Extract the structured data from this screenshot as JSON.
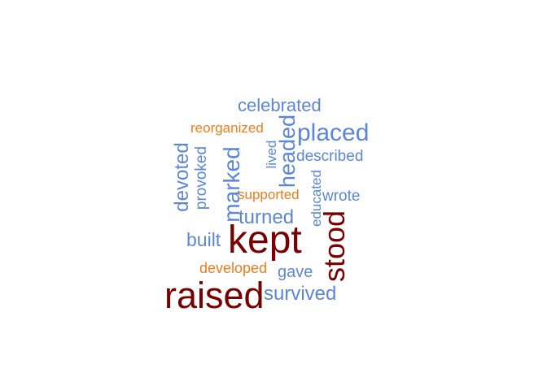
{
  "colors": {
    "dark_red": "#7a0000",
    "blue": "#5b86d9",
    "orange": "#f07d1a"
  },
  "words": {
    "celebrated": "celebrated",
    "reorganized": "reorganized",
    "placed": "placed",
    "headed": "headed",
    "devoted": "devoted",
    "provoked": "provoked",
    "marked": "marked",
    "lived": "lived",
    "described": "described",
    "educated": "educated",
    "supported": "supported",
    "wrote": "wrote",
    "turned": "turned",
    "stood": "stood",
    "built": "built",
    "kept": "kept",
    "developed": "developed",
    "gave": "gave",
    "raised": "raised",
    "survived": "survived"
  }
}
